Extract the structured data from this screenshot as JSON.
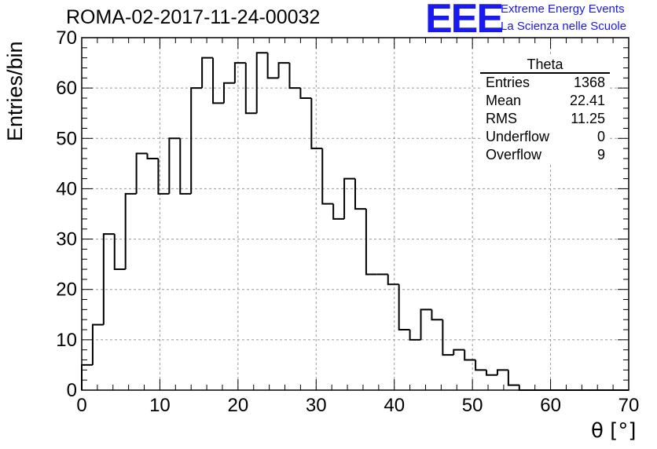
{
  "header": {
    "title": "ROMA-02-2017-11-24-00032",
    "logo_text": "EEE",
    "logo_line1": "Extreme Energy Events",
    "logo_line2": "La Scienza nelle Scuole"
  },
  "stats": {
    "title": "Theta",
    "rows": [
      {
        "label": "Entries",
        "value": "1368"
      },
      {
        "label": "Mean",
        "value": "22.41"
      },
      {
        "label": "RMS",
        "value": "11.25"
      },
      {
        "label": "Underflow",
        "value": "0"
      },
      {
        "label": "Overflow",
        "value": "9"
      }
    ]
  },
  "colors": {
    "line": "#000000",
    "grid": "#9a9a9a",
    "logo": "#1a1aee",
    "background": "#ffffff"
  },
  "chart_data": {
    "type": "bar",
    "style": "step-histogram",
    "xlabel": "θ [°]",
    "ylabel": "Entries/bin",
    "xlim": [
      0,
      70
    ],
    "ylim": [
      0,
      70
    ],
    "grid": true,
    "legend_placement": "top-right",
    "x_ticks": [
      0,
      10,
      20,
      30,
      40,
      50,
      60,
      70
    ],
    "y_ticks": [
      0,
      10,
      20,
      30,
      40,
      50,
      60,
      70
    ],
    "bin_width": 1.4,
    "bin_start": 0,
    "values": [
      5,
      13,
      31,
      24,
      39,
      47,
      46,
      39,
      50,
      39,
      60,
      66,
      57,
      61,
      65,
      55,
      67,
      62,
      65,
      60,
      58,
      48,
      37,
      34,
      42,
      36,
      23,
      23,
      21,
      12,
      10,
      16,
      14,
      7,
      8,
      6,
      4,
      3,
      4,
      1,
      0,
      0,
      0,
      0,
      0,
      0,
      0,
      0,
      0,
      0
    ]
  }
}
